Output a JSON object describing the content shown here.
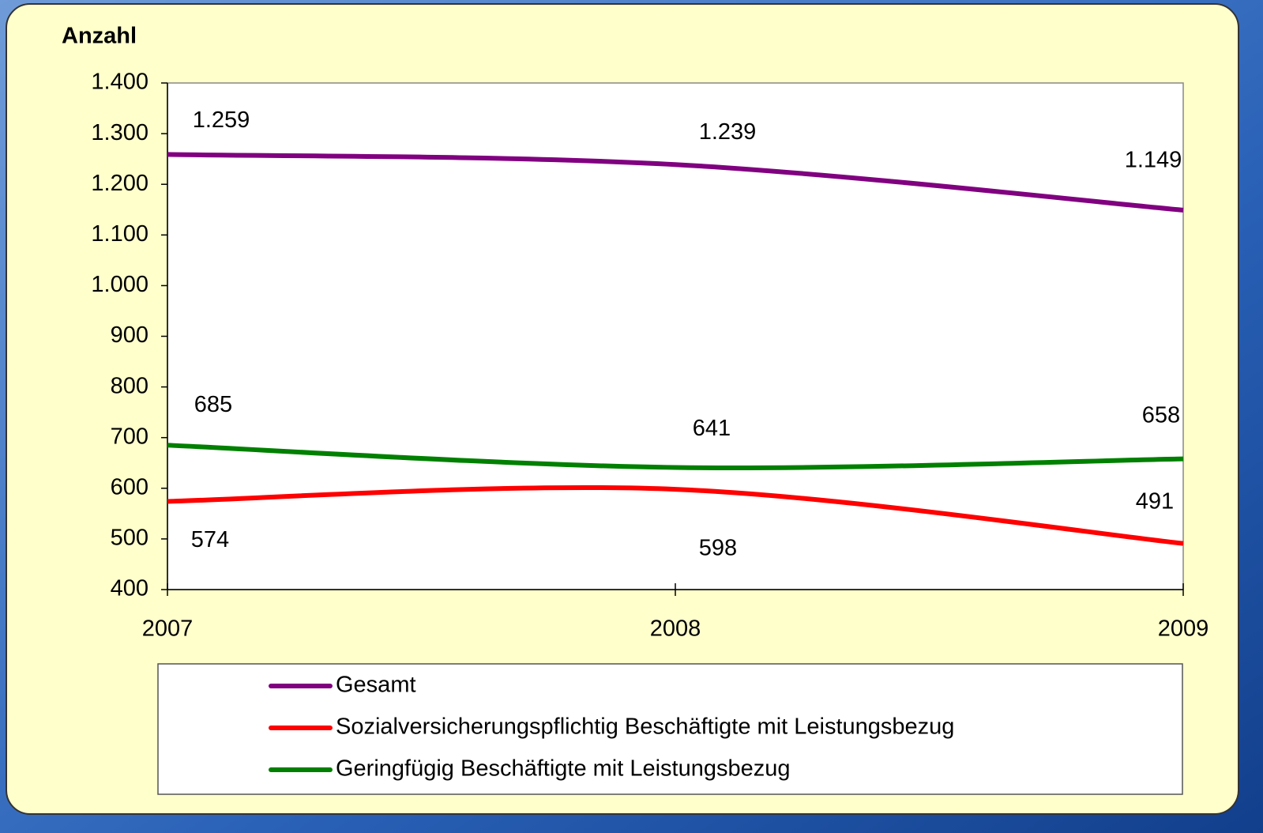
{
  "chart_data": {
    "type": "line",
    "y_axis_title": "Anzahl",
    "categories": [
      "2007",
      "2008",
      "2009"
    ],
    "series": [
      {
        "name": "Gesamt",
        "color": "#800080",
        "values": [
          1259,
          1239,
          1149
        ],
        "value_labels": [
          "1.259",
          "1.239",
          "1.149"
        ]
      },
      {
        "name": "Sozialversicherungspflichtig Beschäftigte mit Leistungsbezug",
        "color": "#ff0000",
        "values": [
          574,
          598,
          491
        ]
      },
      {
        "name": "Geringfügig Beschäftigte mit Leistungsbezug",
        "color": "#008000",
        "values": [
          685,
          641,
          658
        ]
      }
    ],
    "ylim": [
      400,
      1400
    ],
    "yticks": [
      400,
      500,
      600,
      700,
      800,
      900,
      {
        "value": 1000,
        "label": "1.000"
      },
      {
        "value": 1100,
        "label": "1.100"
      },
      {
        "value": 1200,
        "label": "1.200"
      },
      {
        "value": 1300,
        "label": "1.300"
      },
      {
        "value": 1400,
        "label": "1.400"
      }
    ]
  }
}
